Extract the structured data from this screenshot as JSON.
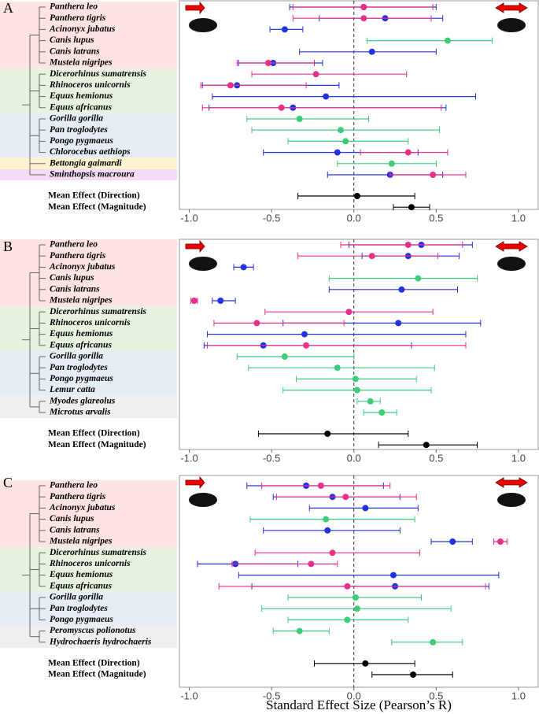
{
  "chart_data": [
    {
      "type": "forest",
      "panel": "A",
      "categories": [
        "Panthera leo",
        "Panthera tigris",
        "Acinonyx jubatus",
        "Canis lupus",
        "Canis latrans",
        "Mustela nigripes",
        "Dicerorhinus sumatrensis",
        "Rhinoceros unicornis",
        "Equus hemionus",
        "Equus africanus",
        "Gorilla gorilla",
        "Pan troglodytes",
        "Pongo pygmaeus",
        "Chlorocebus aethiops",
        "Bettongia gaimardi",
        "Sminthopsis macroura",
        "Mean Effect (Direction)",
        "Mean Effect (Magnitude)"
      ],
      "series": [
        {
          "color": "#3dcc7a",
          "values": [
            null,
            null,
            null,
            0.57,
            null,
            null,
            null,
            null,
            null,
            null,
            -0.33,
            -0.08,
            -0.05,
            null,
            0.23,
            null,
            null,
            null
          ],
          "lows": [
            null,
            null,
            null,
            0.08,
            null,
            null,
            null,
            null,
            null,
            null,
            -0.65,
            -0.62,
            -0.4,
            null,
            -0.1,
            null,
            null,
            null
          ],
          "highs": [
            null,
            null,
            null,
            0.84,
            null,
            null,
            null,
            null,
            null,
            null,
            0.09,
            0.52,
            0.33,
            null,
            0.5,
            null,
            null,
            null
          ]
        },
        {
          "color": "#2233dd",
          "values": [
            0.06,
            0.19,
            -0.42,
            null,
            0.11,
            -0.49,
            null,
            -0.71,
            -0.17,
            -0.37,
            null,
            null,
            null,
            -0.1,
            null,
            0.22,
            null,
            null
          ],
          "lows": [
            -0.39,
            -0.21,
            -0.51,
            null,
            -0.33,
            -0.7,
            null,
            -0.92,
            -0.86,
            -0.88,
            null,
            null,
            null,
            -0.55,
            null,
            -0.16,
            null,
            null
          ],
          "highs": [
            0.5,
            0.54,
            -0.31,
            null,
            0.5,
            -0.19,
            null,
            -0.09,
            0.74,
            0.56,
            null,
            null,
            null,
            0.39,
            null,
            0.54,
            null,
            null
          ]
        },
        {
          "color": "#e8308a",
          "values": [
            0.06,
            0.06,
            null,
            null,
            null,
            -0.52,
            -0.23,
            -0.75,
            null,
            -0.44,
            null,
            null,
            null,
            0.33,
            null,
            0.48,
            null,
            null
          ],
          "lows": [
            -0.37,
            -0.37,
            null,
            null,
            null,
            -0.71,
            -0.62,
            -0.93,
            null,
            -0.92,
            null,
            null,
            null,
            0.04,
            null,
            0.22,
            null,
            null
          ],
          "highs": [
            0.48,
            0.47,
            null,
            null,
            null,
            -0.24,
            0.32,
            -0.29,
            null,
            0.53,
            null,
            null,
            null,
            0.57,
            null,
            0.68,
            null,
            null
          ]
        },
        {
          "color": "#000000",
          "values": [
            null,
            null,
            null,
            null,
            null,
            null,
            null,
            null,
            null,
            null,
            null,
            null,
            null,
            null,
            null,
            null,
            0.02,
            0.35
          ],
          "lows": [
            null,
            null,
            null,
            null,
            null,
            null,
            null,
            null,
            null,
            null,
            null,
            null,
            null,
            null,
            null,
            null,
            -0.34,
            0.24
          ],
          "highs": [
            null,
            null,
            null,
            null,
            null,
            null,
            null,
            null,
            null,
            null,
            null,
            null,
            null,
            null,
            null,
            null,
            0.37,
            0.46
          ]
        }
      ],
      "xlim": [
        -1.06,
        1.12
      ],
      "xticks": [
        {
          "value": -1,
          "label": "-1.0"
        },
        -0.5,
        {
          "value": 0,
          "label": "0.0"
        },
        0.5,
        {
          "value": 1,
          "label": "1.0"
        }
      ]
    },
    {
      "type": "forest",
      "panel": "B",
      "categories": [
        "Panthera leo",
        "Panthera tigris",
        "Acinonyx jubatus",
        "Canis lupus",
        "Canis latrans",
        "Mustela nigripes",
        "Dicerorhinus sumatrensis",
        "Rhinoceros unicornis",
        "Equus hemionus",
        "Equus africanus",
        "Gorilla gorilla",
        "Pan troglodytes",
        "Pongo pygmaeus",
        "Lemur catta",
        "Myodes glareolus",
        "Microtus arvalis",
        "Mean Effect (Direction)",
        "Mean Effect (Magnitude)"
      ],
      "series": [
        {
          "color": "#3dcc7a",
          "values": [
            null,
            null,
            null,
            0.39,
            null,
            null,
            null,
            null,
            null,
            null,
            -0.42,
            -0.1,
            0.01,
            0.02,
            0.1,
            0.17,
            null,
            null
          ],
          "lows": [
            null,
            null,
            null,
            -0.15,
            null,
            null,
            null,
            null,
            null,
            null,
            -0.71,
            -0.64,
            -0.35,
            -0.43,
            0.02,
            0.06,
            null,
            null
          ],
          "highs": [
            null,
            null,
            null,
            0.75,
            null,
            null,
            null,
            null,
            null,
            null,
            0.0,
            0.49,
            0.38,
            0.47,
            0.16,
            0.26,
            null,
            null
          ]
        },
        {
          "color": "#2233dd",
          "values": [
            0.41,
            0.33,
            -0.67,
            null,
            0.29,
            -0.81,
            null,
            0.27,
            -0.3,
            -0.55,
            null,
            null,
            null,
            null,
            null,
            null,
            null,
            null
          ],
          "lows": [
            -0.03,
            0.05,
            -0.73,
            null,
            -0.15,
            -0.86,
            null,
            -0.43,
            -0.89,
            -0.91,
            null,
            null,
            null,
            null,
            null,
            null,
            null,
            null
          ],
          "highs": [
            0.72,
            0.64,
            -0.61,
            null,
            0.63,
            -0.72,
            null,
            0.77,
            0.68,
            0.35,
            null,
            null,
            null,
            null,
            null,
            null,
            null,
            null
          ]
        },
        {
          "color": "#e8308a",
          "values": [
            0.33,
            0.11,
            null,
            null,
            null,
            -0.97,
            -0.03,
            -0.59,
            null,
            -0.29,
            null,
            null,
            null,
            null,
            null,
            null,
            null,
            null
          ],
          "lows": [
            -0.08,
            -0.34,
            null,
            null,
            null,
            -0.99,
            -0.54,
            -0.85,
            null,
            -0.89,
            null,
            null,
            null,
            null,
            null,
            null,
            null,
            null
          ],
          "highs": [
            0.66,
            0.51,
            null,
            null,
            null,
            -0.95,
            0.48,
            -0.06,
            null,
            0.68,
            null,
            null,
            null,
            null,
            null,
            null,
            null,
            null
          ]
        },
        {
          "color": "#000000",
          "values": [
            null,
            null,
            null,
            null,
            null,
            null,
            null,
            null,
            null,
            null,
            null,
            null,
            null,
            null,
            null,
            null,
            -0.16,
            0.44
          ],
          "lows": [
            null,
            null,
            null,
            null,
            null,
            null,
            null,
            null,
            null,
            null,
            null,
            null,
            null,
            null,
            null,
            null,
            -0.58,
            0.15
          ],
          "highs": [
            null,
            null,
            null,
            null,
            null,
            null,
            null,
            null,
            null,
            null,
            null,
            null,
            null,
            null,
            null,
            null,
            0.33,
            0.75
          ]
        }
      ],
      "xlim": [
        -1.06,
        1.12
      ],
      "xticks": [
        {
          "value": -1,
          "label": "-1.0"
        },
        -0.5,
        {
          "value": 0,
          "label": "0.0"
        },
        0.5,
        {
          "value": 1,
          "label": "1.0"
        }
      ]
    },
    {
      "type": "forest",
      "panel": "C",
      "categories": [
        "Panthera leo",
        "Panthera tigris",
        "Acinonyx jubatus",
        "Canis lupus",
        "Canis latrans",
        "Mustela nigripes",
        "Dicerorhinus sumatrensis",
        "Rhinoceros unicornis",
        "Equus hemionus",
        "Equus africanus",
        "Gorilla gorilla",
        "Pan troglodytes",
        "Pongo pygmaeus",
        "Peromyscus polionotus",
        "Hydrochaeris hydrochaeris",
        "Mean Effect (Direction)",
        "Mean Effect (Magnitude)"
      ],
      "series": [
        {
          "color": "#3dcc7a",
          "values": [
            null,
            null,
            null,
            -0.17,
            null,
            null,
            null,
            null,
            null,
            null,
            0.01,
            0.02,
            -0.04,
            -0.33,
            0.48,
            null,
            null
          ],
          "lows": [
            null,
            null,
            null,
            -0.63,
            null,
            null,
            null,
            null,
            null,
            null,
            -0.4,
            -0.56,
            -0.4,
            -0.49,
            0.23,
            null,
            null
          ],
          "highs": [
            null,
            null,
            null,
            0.37,
            null,
            null,
            null,
            null,
            null,
            null,
            0.41,
            0.59,
            0.33,
            -0.15,
            0.66,
            null,
            null
          ]
        },
        {
          "color": "#2233dd",
          "values": [
            -0.29,
            -0.13,
            0.07,
            null,
            -0.16,
            0.6,
            null,
            -0.72,
            0.24,
            0.25,
            null,
            null,
            null,
            null,
            null,
            null,
            null
          ],
          "lows": [
            -0.65,
            -0.49,
            -0.27,
            null,
            -0.55,
            0.47,
            null,
            -0.95,
            -0.7,
            -0.62,
            null,
            null,
            null,
            null,
            null,
            null,
            null
          ],
          "highs": [
            0.18,
            0.28,
            0.39,
            null,
            0.28,
            0.72,
            null,
            -0.34,
            0.88,
            0.82,
            null,
            null,
            null,
            null,
            null,
            null,
            null
          ]
        },
        {
          "color": "#e8308a",
          "values": [
            -0.2,
            -0.05,
            null,
            null,
            null,
            0.89,
            -0.13,
            -0.26,
            null,
            -0.04,
            null,
            null,
            null,
            null,
            null,
            null,
            null
          ],
          "lows": [
            -0.56,
            -0.47,
            null,
            null,
            null,
            0.85,
            -0.6,
            -0.74,
            null,
            -0.82,
            null,
            null,
            null,
            null,
            null,
            null,
            null
          ],
          "highs": [
            0.22,
            0.38,
            null,
            null,
            null,
            0.93,
            0.4,
            -0.1,
            null,
            0.8,
            null,
            null,
            null,
            null,
            null,
            null,
            null
          ]
        },
        {
          "color": "#000000",
          "values": [
            null,
            null,
            null,
            null,
            null,
            null,
            null,
            null,
            null,
            null,
            null,
            null,
            null,
            null,
            null,
            0.07,
            0.36
          ],
          "lows": [
            null,
            null,
            null,
            null,
            null,
            null,
            null,
            null,
            null,
            null,
            null,
            null,
            null,
            null,
            null,
            -0.24,
            0.11
          ],
          "highs": [
            null,
            null,
            null,
            null,
            null,
            null,
            null,
            null,
            null,
            null,
            null,
            null,
            null,
            null,
            null,
            0.37,
            0.6
          ]
        }
      ],
      "xlim": [
        -1.06,
        1.12
      ],
      "xticks": [
        {
          "value": -1,
          "label": "-1.0"
        },
        -0.5,
        {
          "value": 0,
          "label": "0.0"
        },
        0.5,
        {
          "value": 1,
          "label": "1.0"
        }
      ],
      "x_label": "Standard Effect Size (Pearson’s R)"
    }
  ]
}
